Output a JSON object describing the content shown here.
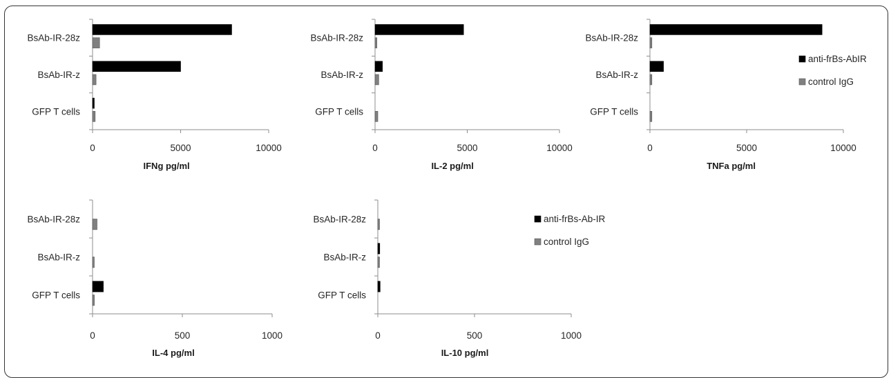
{
  "chart_data": [
    {
      "type": "bar",
      "orientation": "horizontal",
      "categories": [
        "BsAb-IR-28z",
        "BsAb-IR-z",
        "GFP T cells"
      ],
      "series": [
        {
          "name": "anti-frBs-AbIR",
          "values": [
            7900,
            5000,
            80
          ],
          "color": "#000000"
        },
        {
          "name": "control IgG",
          "values": [
            400,
            200,
            150
          ],
          "color": "#808080"
        }
      ],
      "xlabel": "IFNg pg/ml",
      "xlim": [
        0,
        10000
      ],
      "xticks": [
        "0",
        "5000",
        "10000"
      ],
      "legend_shown": false
    },
    {
      "type": "bar",
      "orientation": "horizontal",
      "categories": [
        "BsAb-IR-28z",
        "BsAb-IR-z",
        "GFP T cells"
      ],
      "series": [
        {
          "name": "anti-frBs-AbIR",
          "values": [
            4800,
            400,
            0
          ],
          "color": "#000000"
        },
        {
          "name": "control IgG",
          "values": [
            100,
            200,
            150
          ],
          "color": "#808080"
        }
      ],
      "xlabel": "IL-2 pg/ml",
      "xlim": [
        0,
        10000
      ],
      "xticks": [
        "0",
        "5000",
        "10000"
      ],
      "legend_shown": false
    },
    {
      "type": "bar",
      "orientation": "horizontal",
      "categories": [
        "BsAb-IR-28z",
        "BsAb-IR-z",
        "GFP T cells"
      ],
      "series": [
        {
          "name": "anti-frBs-AbIR",
          "values": [
            8900,
            700,
            0
          ],
          "color": "#000000"
        },
        {
          "name": "control IgG",
          "values": [
            100,
            100,
            100
          ],
          "color": "#808080"
        }
      ],
      "xlabel": "TNFa pg/ml",
      "xlim": [
        0,
        10000
      ],
      "xticks": [
        "0",
        "5000",
        "10000"
      ],
      "legend_shown": true,
      "legend_position": "right",
      "legend_entries": [
        "anti-frBs-AbIR",
        "control IgG"
      ]
    },
    {
      "type": "bar",
      "orientation": "horizontal",
      "categories": [
        "BsAb-IR-28z",
        "BsAb-IR-z",
        "GFP T cells"
      ],
      "series": [
        {
          "name": "anti-frBs-Ab-IR",
          "values": [
            0,
            0,
            60
          ],
          "color": "#000000"
        },
        {
          "name": "control IgG",
          "values": [
            25,
            5,
            10
          ],
          "color": "#808080"
        }
      ],
      "xlabel": "IL-4 pg/ml",
      "xlim": [
        0,
        1000
      ],
      "xticks": [
        "0",
        "500",
        "1000"
      ],
      "legend_shown": false
    },
    {
      "type": "bar",
      "orientation": "horizontal",
      "categories": [
        "BsAb-IR-28z",
        "BsAb-IR-z",
        "GFP T cells"
      ],
      "series": [
        {
          "name": "anti-frBs-Ab-IR",
          "values": [
            0,
            10,
            12
          ],
          "color": "#000000"
        },
        {
          "name": "control IgG",
          "values": [
            5,
            5,
            0
          ],
          "color": "#808080"
        }
      ],
      "xlabel": "IL-10 pg/ml",
      "xlim": [
        0,
        1000
      ],
      "xticks": [
        "0",
        "500",
        "1000"
      ],
      "legend_shown": true,
      "legend_position": "right",
      "legend_entries": [
        "anti-frBs-Ab-IR",
        "control IgG"
      ]
    }
  ]
}
